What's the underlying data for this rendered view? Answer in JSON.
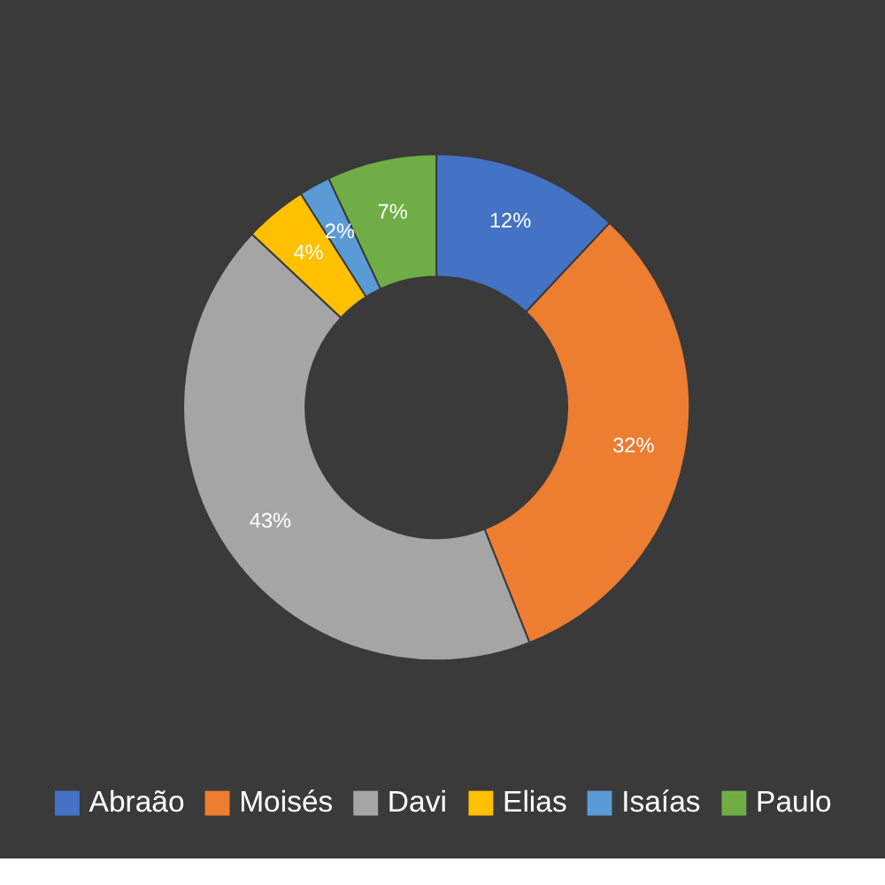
{
  "chart_data": {
    "type": "donut",
    "categories": [
      "Abraão",
      "Moisés",
      "Davi",
      "Elias",
      "Isaías",
      "Paulo"
    ],
    "values": [
      12,
      32,
      43,
      4,
      2,
      7
    ],
    "colors": [
      "#4472c4",
      "#ed7d31",
      "#a5a5a5",
      "#ffc000",
      "#5b9bd5",
      "#70ad47"
    ],
    "value_labels": [
      "12%",
      "32%",
      "43%",
      "4%",
      "2%",
      "7%"
    ],
    "legend": "bottom"
  }
}
